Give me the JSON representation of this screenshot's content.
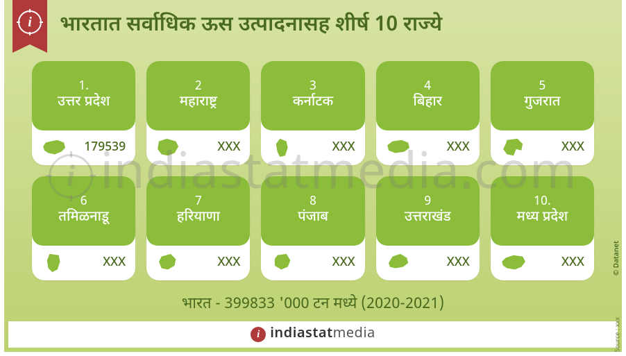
{
  "colors": {
    "bg_top": "#d7e3a4",
    "bg_bottom": "#bcd170",
    "card_green": "#8bbd3b",
    "text_green": "#4a6b1e",
    "ribbon": "#b03a3a",
    "white": "#ffffff"
  },
  "title": "भारतात सर्वाधिक ऊस उत्पादनासह शीर्ष 10 राज्ये",
  "cards": [
    {
      "rank": "1.",
      "state": "उत्तर प्रदेश",
      "value": "179539",
      "shape": "up"
    },
    {
      "rank": "2",
      "state": "महाराष्ट्र",
      "value": "XXX",
      "shape": "mh"
    },
    {
      "rank": "3",
      "state": "कर्नाटक",
      "value": "XXX",
      "shape": "ka"
    },
    {
      "rank": "4",
      "state": "बिहार",
      "value": "XXX",
      "shape": "br"
    },
    {
      "rank": "5",
      "state": "गुजरात",
      "value": "XXX",
      "shape": "gj"
    },
    {
      "rank": "6",
      "state": "तमिळनाडू",
      "value": "XXX",
      "shape": "tn"
    },
    {
      "rank": "7",
      "state": "हरियाणा",
      "value": "XXX",
      "shape": "hr"
    },
    {
      "rank": "8",
      "state": "पंजाब",
      "value": "XXX",
      "shape": "pb"
    },
    {
      "rank": "9",
      "state": "उत्तराखंड",
      "value": "XXX",
      "shape": "uk"
    },
    {
      "rank": "10.",
      "state": "मध्य प्रदेश",
      "value": "XXX",
      "shape": "mp"
    }
  ],
  "summary": "भारत  -  399833 '000 टन मध्ये (2020-2021)",
  "footer_brand": "indiastatmedia",
  "watermark_text": "indiastatmedia.com",
  "side": {
    "source": "Source : xxx",
    "copyright": "© Datanet"
  }
}
